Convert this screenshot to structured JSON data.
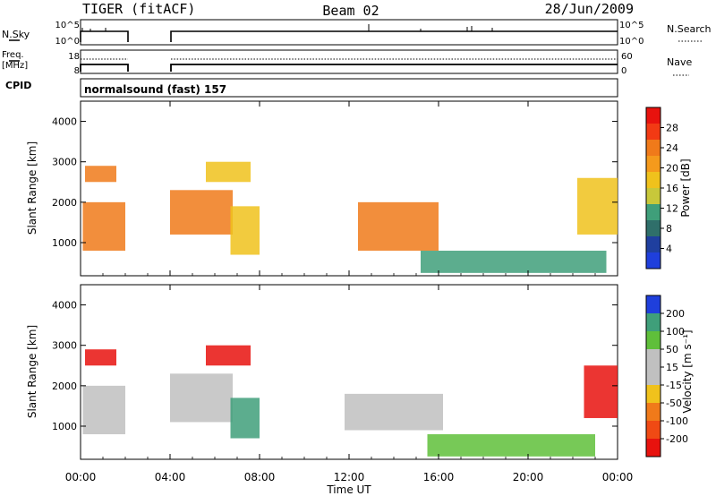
{
  "header": {
    "radar": "TIGER (fitACF)",
    "beam": "Beam 02",
    "date": "28/Jun/2009"
  },
  "top_panels": {
    "nsky_label": "N.Sky",
    "nsky_ticks": [
      "10^5",
      "10^0"
    ],
    "nsearch_label": "N.Search",
    "freq_label_1": "Freq.",
    "freq_label_2": "[MHz]",
    "freq_ticks": [
      "18",
      "8"
    ],
    "nave_label": "Nave",
    "nave_ticks": [
      "60",
      "0"
    ],
    "cpid_label": "CPID",
    "cpid_value": "normalsound (fast) 157"
  },
  "colors": {
    "scale_red": "#e8120e",
    "scale_orange": "#f07a1a",
    "scale_yellow": "#f0c21c",
    "scale_green": "#5fbf3a",
    "scale_teal": "#3f9f7a",
    "scale_blue": "#1f3fdc",
    "gray": "#c0c0c0"
  },
  "chart_data": [
    {
      "type": "heatmap",
      "parameter": "Power",
      "ylabel": "Slant Range [km]",
      "y_ticks": [
        "1000",
        "2000",
        "3000",
        "4000"
      ],
      "ylim": [
        180,
        4500
      ],
      "x_ticks": [
        "00:00",
        "04:00",
        "08:00",
        "12:00",
        "16:00",
        "20:00",
        "00:00"
      ],
      "xlim_hours": [
        0,
        24
      ],
      "colorbar_label": "Power [dB]",
      "colorbar_ticks": [
        "28",
        "24",
        "20",
        "16",
        "12",
        "8",
        "4"
      ],
      "data_gap_hours": [
        2.0,
        4.0
      ],
      "echo_regions": [
        {
          "t_start": 0.1,
          "t_end": 2.0,
          "range_low": 800,
          "range_high": 2000,
          "power_dB": 20
        },
        {
          "t_start": 0.2,
          "t_end": 1.6,
          "range_low": 2500,
          "range_high": 2900,
          "power_dB": 22
        },
        {
          "t_start": 4.0,
          "t_end": 6.8,
          "range_low": 1200,
          "range_high": 2300,
          "power_dB": 22
        },
        {
          "t_start": 5.6,
          "t_end": 7.6,
          "range_low": 2500,
          "range_high": 3000,
          "power_dB": 18
        },
        {
          "t_start": 6.7,
          "t_end": 8.0,
          "range_low": 700,
          "range_high": 1900,
          "power_dB": 18
        },
        {
          "t_start": 12.4,
          "t_end": 16.0,
          "range_low": 800,
          "range_high": 2000,
          "power_dB": 20
        },
        {
          "t_start": 15.2,
          "t_end": 23.5,
          "range_low": 250,
          "range_high": 800,
          "power_dB": 14
        },
        {
          "t_start": 22.2,
          "t_end": 24.0,
          "range_low": 1200,
          "range_high": 2600,
          "power_dB": 18
        }
      ]
    },
    {
      "type": "heatmap",
      "parameter": "Velocity",
      "ylabel": "Slant Range [km]",
      "y_ticks": [
        "1000",
        "2000",
        "3000",
        "4000"
      ],
      "ylim": [
        180,
        4500
      ],
      "x_ticks": [
        "00:00",
        "04:00",
        "08:00",
        "12:00",
        "16:00",
        "20:00",
        "00:00"
      ],
      "xlabel": "Time UT",
      "xlim_hours": [
        0,
        24
      ],
      "colorbar_label": "Velocity [m s⁻¹]",
      "colorbar_ticks": [
        "200",
        "100",
        "50",
        "15",
        "-15",
        "-50",
        "-100",
        "-200"
      ],
      "data_gap_hours": [
        2.0,
        4.0
      ],
      "echo_regions": [
        {
          "t_start": 0.1,
          "t_end": 2.0,
          "range_low": 800,
          "range_high": 2000,
          "velocity": 0
        },
        {
          "t_start": 0.2,
          "t_end": 1.6,
          "range_low": 2500,
          "range_high": 2900,
          "velocity": -200
        },
        {
          "t_start": 4.0,
          "t_end": 6.8,
          "range_low": 1100,
          "range_high": 2300,
          "velocity": 0
        },
        {
          "t_start": 5.6,
          "t_end": 7.6,
          "range_low": 2500,
          "range_high": 3000,
          "velocity": -200
        },
        {
          "t_start": 6.7,
          "t_end": 8.0,
          "range_low": 700,
          "range_high": 1700,
          "velocity": 100
        },
        {
          "t_start": 11.8,
          "t_end": 16.2,
          "range_low": 900,
          "range_high": 1800,
          "velocity": 0
        },
        {
          "t_start": 15.5,
          "t_end": 23.0,
          "range_low": 250,
          "range_high": 800,
          "velocity": 50
        },
        {
          "t_start": 22.5,
          "t_end": 24.0,
          "range_low": 1200,
          "range_high": 2500,
          "velocity": -200
        }
      ]
    }
  ]
}
